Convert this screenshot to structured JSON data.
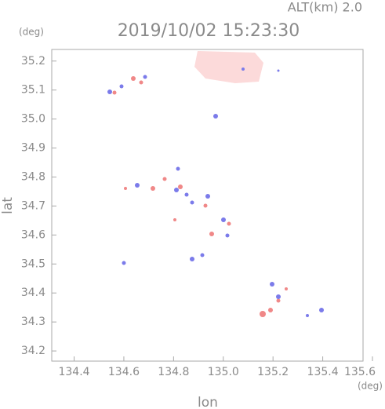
{
  "chart_data": {
    "type": "map",
    "title": "2019/10/02 15:23:30",
    "subtitle": "ALT(km) 2.0",
    "x_label": "lon",
    "y_label": "lat",
    "x_unit": "(deg)",
    "y_unit": "(deg)",
    "xlim": [
      134.31,
      135.6
    ],
    "ylim": [
      34.165,
      35.24
    ],
    "xticks": [
      134.4,
      134.6,
      134.8,
      {
        "value": 135.0,
        "label": "135.0"
      },
      135.2,
      135.4,
      135.6
    ],
    "yticks": [
      34.2,
      34.3,
      34.4,
      34.5,
      34.6,
      34.7,
      34.8,
      34.9,
      {
        "value": 35.0,
        "label": "35.0"
      },
      35.1,
      35.2
    ]
  }
}
